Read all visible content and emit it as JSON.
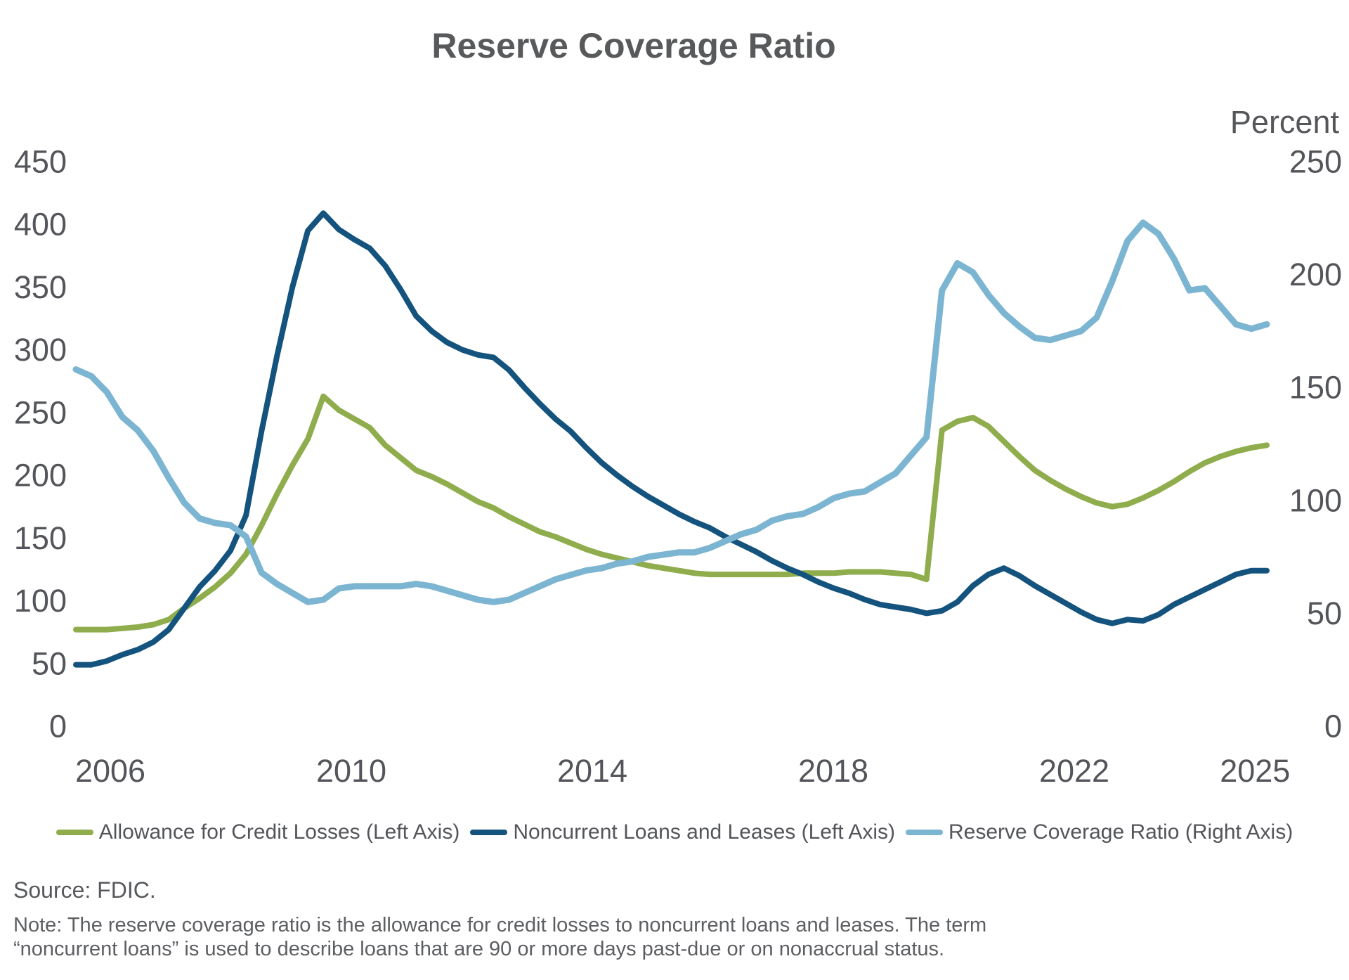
{
  "chart_meta": {
    "title": "Reserve Coverage Ratio",
    "right_axis_title": "Percent"
  },
  "chart_data": {
    "type": "line",
    "title": "Reserve Coverage Ratio",
    "grid": false,
    "legend_position": "bottom",
    "x_tick_labels": [
      "2006",
      "2010",
      "2014",
      "2018",
      "2022",
      "2025"
    ],
    "x_categories": [
      "2006Q1",
      "2006Q2",
      "2006Q3",
      "2006Q4",
      "2007Q1",
      "2007Q2",
      "2007Q3",
      "2007Q4",
      "2008Q1",
      "2008Q2",
      "2008Q3",
      "2008Q4",
      "2009Q1",
      "2009Q2",
      "2009Q3",
      "2009Q4",
      "2010Q1",
      "2010Q2",
      "2010Q3",
      "2010Q4",
      "2011Q1",
      "2011Q2",
      "2011Q3",
      "2011Q4",
      "2012Q1",
      "2012Q2",
      "2012Q3",
      "2012Q4",
      "2013Q1",
      "2013Q2",
      "2013Q3",
      "2013Q4",
      "2014Q1",
      "2014Q2",
      "2014Q3",
      "2014Q4",
      "2015Q1",
      "2015Q2",
      "2015Q3",
      "2015Q4",
      "2016Q1",
      "2016Q2",
      "2016Q3",
      "2016Q4",
      "2017Q1",
      "2017Q2",
      "2017Q3",
      "2017Q4",
      "2018Q1",
      "2018Q2",
      "2018Q3",
      "2018Q4",
      "2019Q1",
      "2019Q2",
      "2019Q3",
      "2019Q4",
      "2020Q1",
      "2020Q2",
      "2020Q3",
      "2020Q4",
      "2021Q1",
      "2021Q2",
      "2021Q3",
      "2021Q4",
      "2022Q1",
      "2022Q2",
      "2022Q3",
      "2022Q4",
      "2023Q1",
      "2023Q2",
      "2023Q3",
      "2023Q4",
      "2024Q1",
      "2024Q2",
      "2024Q3",
      "2024Q4",
      "2025Q1",
      "2025Q2"
    ],
    "left_axis": {
      "range": [
        0,
        450
      ],
      "ticks": [
        450,
        400,
        350,
        300,
        250,
        200,
        150,
        100,
        50,
        0
      ]
    },
    "right_axis": {
      "label": "Percent",
      "range": [
        0,
        250
      ],
      "ticks": [
        250,
        200,
        150,
        100,
        50,
        0
      ]
    },
    "series": [
      {
        "id": "allowance",
        "name": "Allowance for Credit Losses (Left Axis)",
        "axis": "left",
        "color": "#8fad4c",
        "stroke_width": 8,
        "values": [
          77,
          77,
          77,
          78,
          79,
          81,
          85,
          94,
          102,
          111,
          122,
          137,
          160,
          185,
          208,
          229,
          263,
          252,
          245,
          238,
          224,
          214,
          204,
          199,
          193,
          186,
          179,
          174,
          167,
          161,
          155,
          151,
          146,
          141,
          137,
          134,
          131,
          128,
          126,
          124,
          122,
          121,
          121,
          121,
          121,
          121,
          121,
          122,
          122,
          122,
          123,
          123,
          123,
          122,
          121,
          117,
          236,
          243,
          246,
          239,
          227,
          215,
          204,
          196,
          189,
          183,
          178,
          175,
          177,
          182,
          188,
          195,
          203,
          210,
          215,
          219,
          222,
          224
        ]
      },
      {
        "id": "noncurrent",
        "name": "Noncurrent Loans and Leases (Left Axis)",
        "axis": "left",
        "color": "#14537e",
        "stroke_width": 8,
        "values": [
          49,
          49,
          52,
          57,
          61,
          67,
          77,
          94,
          111,
          124,
          140,
          168,
          235,
          295,
          350,
          395,
          409,
          396,
          388,
          381,
          367,
          348,
          327,
          315,
          306,
          300,
          296,
          294,
          284,
          270,
          257,
          245,
          235,
          222,
          210,
          200,
          191,
          183,
          176,
          169,
          163,
          158,
          151,
          145,
          139,
          132,
          126,
          121,
          115,
          110,
          106,
          101,
          97,
          95,
          93,
          90,
          92,
          99,
          112,
          121,
          126,
          120,
          112,
          105,
          98,
          91,
          85,
          82,
          85,
          84,
          89,
          97,
          103,
          109,
          115,
          121,
          124,
          124
        ]
      },
      {
        "id": "coverage",
        "name": "Reserve Coverage Ratio (Right Axis)",
        "axis": "right",
        "color": "#7cb5d1",
        "stroke_width": 9,
        "values": [
          158,
          155,
          148,
          137,
          131,
          122,
          110,
          99,
          92,
          90,
          89,
          84,
          68,
          63,
          59,
          55,
          56,
          61,
          62,
          62,
          62,
          62,
          63,
          62,
          60,
          58,
          56,
          55,
          56,
          59,
          62,
          65,
          67,
          69,
          70,
          72,
          73,
          75,
          76,
          77,
          77,
          79,
          82,
          85,
          87,
          91,
          93,
          94,
          97,
          101,
          103,
          104,
          108,
          112,
          120,
          128,
          193,
          205,
          201,
          191,
          183,
          177,
          172,
          171,
          173,
          175,
          181,
          197,
          215,
          223,
          218,
          207,
          193,
          194,
          186,
          178,
          176,
          178
        ]
      }
    ]
  },
  "footer": {
    "source": "Source: FDIC.",
    "note_lines": [
      "Note: The reserve coverage ratio is the allowance for credit losses to noncurrent loans and leases. The term",
      "“noncurrent loans” is used to describe loans that are 90 or more days past-due or on nonaccrual status."
    ]
  }
}
